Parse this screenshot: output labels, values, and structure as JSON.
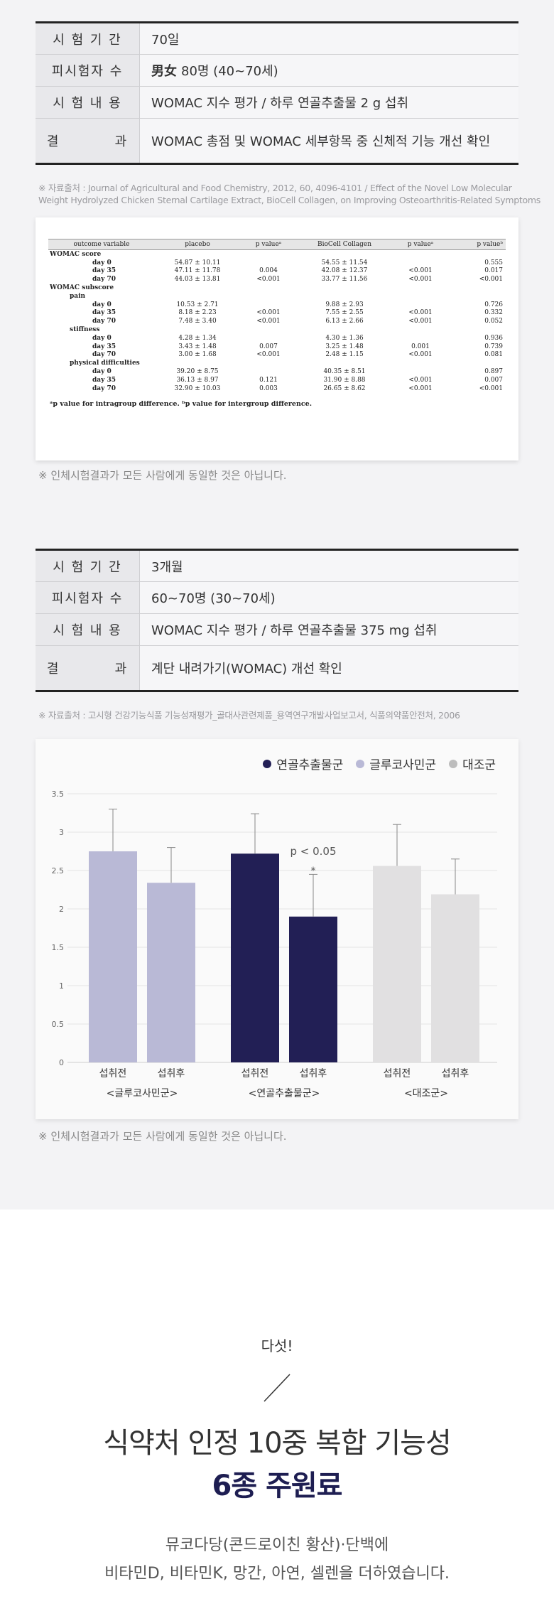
{
  "study1": {
    "rows": [
      {
        "label": "시 험 기 간",
        "value": "70일"
      },
      {
        "label": "피시험자 수",
        "value_bold": "男女",
        "value": "80명 (40~70세)"
      },
      {
        "label": "시 험 내 용",
        "value": "WOMAC 지수 평가 / 하루 연골추출물 2 g 섭취"
      },
      {
        "label": "결          과",
        "value": "WOMAC 총점 및 WOMAC 세부항목 중 신체적 기능 개선 확인"
      }
    ],
    "source_line1": "※ 자료출처 : Journal of Agricultural and Food Chemistry, 2012, 60, 4096-4101 / Effect of the Novel Low Molecular",
    "source_line2": "Weight Hydrolyzed Chicken Sternal Cartilage Extract, BioCell Collagen, on Improving Osteoarthritis-Related Symptoms",
    "note": "※ 인체시험결과가 모든 사람에게 동일한 것은 아닙니다."
  },
  "paper_table": {
    "headers": [
      "outcome variable",
      "placebo",
      "p valueᵃ",
      "BioCell Collagen",
      "p valueᵃ",
      "p valueᵇ"
    ],
    "rows": [
      {
        "level": 0,
        "cells": [
          "WOMAC score",
          "",
          "",
          "",
          "",
          ""
        ]
      },
      {
        "level": 2,
        "cells": [
          "day 0",
          "54.87 ± 10.11",
          "",
          "54.55 ± 11.54",
          "",
          "0.555"
        ]
      },
      {
        "level": 2,
        "cells": [
          "day 35",
          "47.11 ± 11.78",
          "0.004",
          "42.08 ± 12.37",
          "<0.001",
          "0.017"
        ]
      },
      {
        "level": 2,
        "cells": [
          "day 70",
          "44.03 ± 13.81",
          "<0.001",
          "33.77 ± 11.56",
          "<0.001",
          "<0.001"
        ]
      },
      {
        "level": 0,
        "cells": [
          "WOMAC subscore",
          "",
          "",
          "",
          "",
          ""
        ]
      },
      {
        "level": 1,
        "cells": [
          "pain",
          "",
          "",
          "",
          "",
          ""
        ]
      },
      {
        "level": 2,
        "cells": [
          "day 0",
          "10.53 ± 2.71",
          "",
          "9.88 ± 2.93",
          "",
          "0.726"
        ]
      },
      {
        "level": 2,
        "cells": [
          "day 35",
          "8.18 ± 2.23",
          "<0.001",
          "7.55 ± 2.55",
          "<0.001",
          "0.332"
        ]
      },
      {
        "level": 2,
        "cells": [
          "day 70",
          "7.48 ± 3.40",
          "<0.001",
          "6.13 ± 2.66",
          "<0.001",
          "0.052"
        ]
      },
      {
        "level": 1,
        "cells": [
          "stiffness",
          "",
          "",
          "",
          "",
          ""
        ]
      },
      {
        "level": 2,
        "cells": [
          "day 0",
          "4.28 ± 1.34",
          "",
          "4.30 ± 1.36",
          "",
          "0.936"
        ]
      },
      {
        "level": 2,
        "cells": [
          "day 35",
          "3.43 ± 1.48",
          "0.007",
          "3.25 ± 1.48",
          "0.001",
          "0.739"
        ]
      },
      {
        "level": 2,
        "cells": [
          "day 70",
          "3.00 ± 1.68",
          "<0.001",
          "2.48 ± 1.15",
          "<0.001",
          "0.081"
        ]
      },
      {
        "level": 1,
        "cells": [
          "physical difficulties",
          "",
          "",
          "",
          "",
          ""
        ]
      },
      {
        "level": 2,
        "cells": [
          "day 0",
          "39.20 ± 8.75",
          "",
          "40.35 ± 8.51",
          "",
          "0.897"
        ]
      },
      {
        "level": 2,
        "cells": [
          "day 35",
          "36.13 ± 8.97",
          "0.121",
          "31.90 ± 8.88",
          "<0.001",
          "0.007"
        ]
      },
      {
        "level": 2,
        "cells": [
          "day 70",
          "32.90 ± 10.03",
          "0.003",
          "26.65 ± 8.62",
          "<0.001",
          "<0.001"
        ]
      }
    ],
    "footnote": "ᵃp value for intragroup difference. ᵇp value for intergroup difference."
  },
  "study2": {
    "rows": [
      {
        "label": "시 험 기 간",
        "value": "3개월"
      },
      {
        "label": "피시험자 수",
        "value": "60~70명 (30~70세)"
      },
      {
        "label": "시 험 내 용",
        "value": "WOMAC 지수 평가 / 하루 연골추출물 375 mg 섭취"
      },
      {
        "label": "결          과",
        "value": "계단 내려가기(WOMAC) 개선 확인"
      }
    ],
    "source": "※ 자료출처 : 고시형 건강기능식품 기능성재평가_골대사관련제품_용역연구개발사업보고서, 식품의약품안전처, 2006",
    "note": "※ 인체시험결과가 모든 사람에게 동일한 것은 아닙니다."
  },
  "chart_data": {
    "type": "bar",
    "groups": [
      "<글루코사민군>",
      "<연골추출물군>",
      "<대조군>"
    ],
    "categories": [
      "섭취전",
      "섭취후"
    ],
    "series": [
      {
        "name": "글루코사민군",
        "color": "#b9b9d6",
        "values": [
          2.75,
          2.34
        ],
        "errors": [
          0.55,
          0.46
        ]
      },
      {
        "name": "연골추출물군",
        "color": "#221f55",
        "values": [
          2.72,
          1.9
        ],
        "errors": [
          0.52,
          0.55
        ]
      },
      {
        "name": "대조군",
        "color": "#e1e0e1",
        "values": [
          2.56,
          2.19
        ],
        "errors": [
          0.54,
          0.46
        ]
      }
    ],
    "legend_order": [
      "연골추출물군",
      "글루코사민군",
      "대조군"
    ],
    "legend_dot_colors": [
      "#221f55",
      "#b9b9d6",
      "#bdbdbd"
    ],
    "yticks": [
      "0",
      "0.5",
      "1",
      "1.5",
      "2",
      "2.5",
      "3",
      "3.5"
    ],
    "ylim": [
      0,
      3.5
    ],
    "annotation": "p < 0.05",
    "annotation_mark": "*",
    "grid": true,
    "legend_position": "top-right"
  },
  "bottom": {
    "number": "다섯!",
    "title_line1": "식약처 인정 10중 복합 기능성",
    "title_line2": "6종 주원료",
    "desc_line1": "뮤코다당(콘드로이친 황산)·단백에",
    "desc_line2": "비타민D, 비타민K, 망간, 아연, 셀렌을 더하였습니다."
  }
}
